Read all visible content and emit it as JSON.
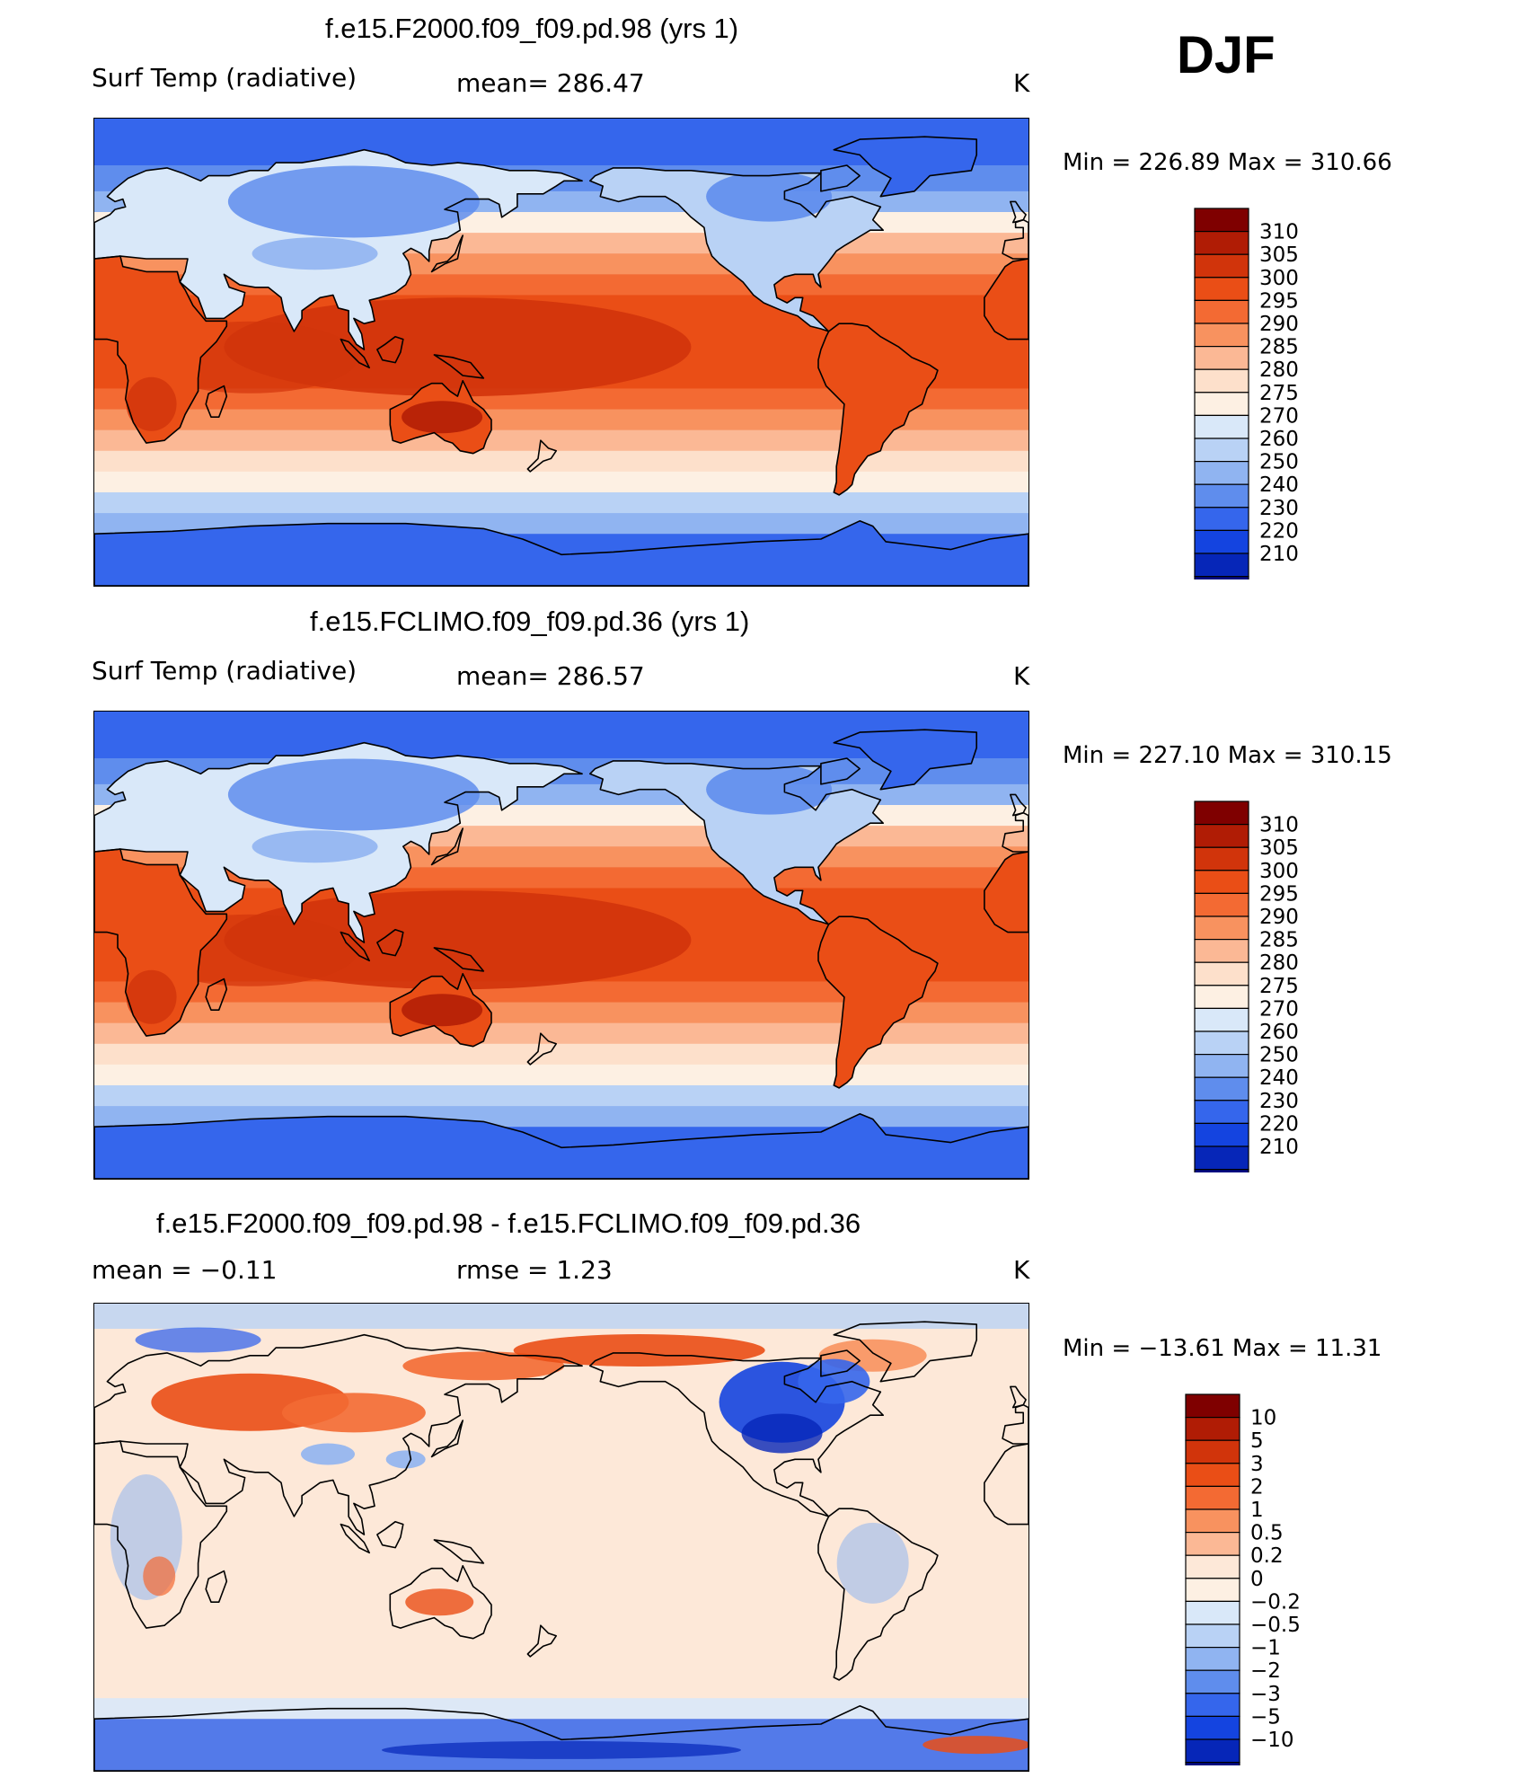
{
  "season": "DJF",
  "panels": [
    {
      "title": "f.e15.F2000.f09_f09.pd.98 (yrs 1)",
      "label_left": "Surf Temp (radiative)",
      "label_mid": "mean= 286.47",
      "label_right": "K",
      "minmax": "Min = 226.89 Max = 310.66",
      "kind": "abs"
    },
    {
      "title": "f.e15.FCLIMO.f09_f09.pd.36 (yrs 1)",
      "label_left": "Surf Temp (radiative)",
      "label_mid": "mean= 286.57",
      "label_right": "K",
      "minmax": "Min = 227.10 Max = 310.15",
      "kind": "abs"
    },
    {
      "title": "f.e15.F2000.f09_f09.pd.98 - f.e15.FCLIMO.f09_f09.pd.36",
      "label_left": "mean =   −0.11",
      "label_mid": "rmse =    1.23",
      "label_right": "K",
      "minmax": "Min = −13.61 Max =  11.31",
      "kind": "diff"
    }
  ],
  "chart_data": [
    {
      "type": "heatmap",
      "title": "f.e15.F2000.f09_f09.pd.98 (yrs 1)",
      "variable": "Surf Temp (radiative)",
      "units": "K",
      "mean": 286.47,
      "min": 226.89,
      "max": 310.66,
      "colorbar_levels": [
        310,
        305,
        300,
        295,
        290,
        285,
        280,
        275,
        270,
        260,
        250,
        240,
        230,
        220,
        210
      ],
      "colorbar_colors": [
        "#7f0000",
        "#b01c05",
        "#d1340b",
        "#ea4e16",
        "#f36a33",
        "#f8925f",
        "#fbb895",
        "#fde0cb",
        "#fdf0e3",
        "#d9e8f9",
        "#b9d2f5",
        "#90b4f1",
        "#5f8ded",
        "#3566ec",
        "#1444e0",
        "#0626b8",
        "#000a80"
      ],
      "projection": "cylindrical equidistant, centered 180"
    },
    {
      "type": "heatmap",
      "title": "f.e15.FCLIMO.f09_f09.pd.36 (yrs 1)",
      "variable": "Surf Temp (radiative)",
      "units": "K",
      "mean": 286.57,
      "min": 227.1,
      "max": 310.15,
      "colorbar_levels": [
        310,
        305,
        300,
        295,
        290,
        285,
        280,
        275,
        270,
        260,
        250,
        240,
        230,
        220,
        210
      ],
      "colorbar_colors": [
        "#7f0000",
        "#b01c05",
        "#d1340b",
        "#ea4e16",
        "#f36a33",
        "#f8925f",
        "#fbb895",
        "#fde0cb",
        "#fdf0e3",
        "#d9e8f9",
        "#b9d2f5",
        "#90b4f1",
        "#5f8ded",
        "#3566ec",
        "#1444e0",
        "#0626b8",
        "#000a80"
      ],
      "projection": "cylindrical equidistant, centered 180"
    },
    {
      "type": "heatmap",
      "title": "f.e15.F2000.f09_f09.pd.98 - f.e15.FCLIMO.f09_f09.pd.36",
      "units": "K",
      "mean": -0.11,
      "rmse": 1.23,
      "min": -13.61,
      "max": 11.31,
      "colorbar_levels": [
        "10",
        "5",
        "3",
        "2",
        "1",
        "0.5",
        "0.2",
        "0",
        "−0.2",
        "−0.5",
        "−1",
        "−2",
        "−3",
        "−5",
        "−10"
      ],
      "colorbar_colors": [
        "#7f0000",
        "#b01c05",
        "#d1340b",
        "#ea4e16",
        "#f36a33",
        "#f8925f",
        "#fbb895",
        "#fde8d8",
        "#fdf0e3",
        "#d9e8f9",
        "#b9d2f5",
        "#90b4f1",
        "#5f8ded",
        "#3566ec",
        "#1444e0",
        "#0626b8",
        "#000a80"
      ],
      "projection": "cylindrical equidistant, centered 180"
    }
  ]
}
